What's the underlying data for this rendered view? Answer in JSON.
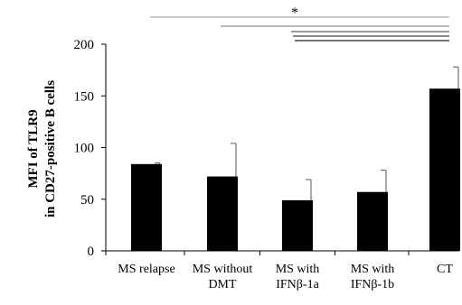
{
  "chart_data": {
    "type": "bar",
    "categories": [
      [
        "MS relapse"
      ],
      [
        "MS without",
        "DMT"
      ],
      [
        "MS with",
        "IFNβ-1a"
      ],
      [
        "MS with",
        "IFNβ-1b"
      ],
      [
        "CT"
      ]
    ],
    "values": [
      84,
      72,
      49,
      57,
      157
    ],
    "error_upper": [
      85,
      104,
      69,
      78,
      178
    ],
    "ylabel_lines": [
      "MFI of TLR9",
      "in CD27-positive B cells"
    ],
    "ylim": [
      0,
      200
    ],
    "yticks": [
      0,
      50,
      100,
      150,
      200
    ],
    "bar_color": "#000000",
    "grid": false,
    "significance_marker": "*",
    "significance_brackets": [
      {
        "from": 0,
        "to": 4,
        "shade": "#b0b0b0"
      },
      {
        "from": 1,
        "to": 4,
        "shade": "#909090"
      },
      {
        "from": 2,
        "to": 4,
        "shade": "#606060"
      },
      {
        "from": 2,
        "to": 4,
        "shade": "#404040"
      },
      {
        "from": 2,
        "to": 4,
        "shade": "#202020"
      }
    ]
  }
}
